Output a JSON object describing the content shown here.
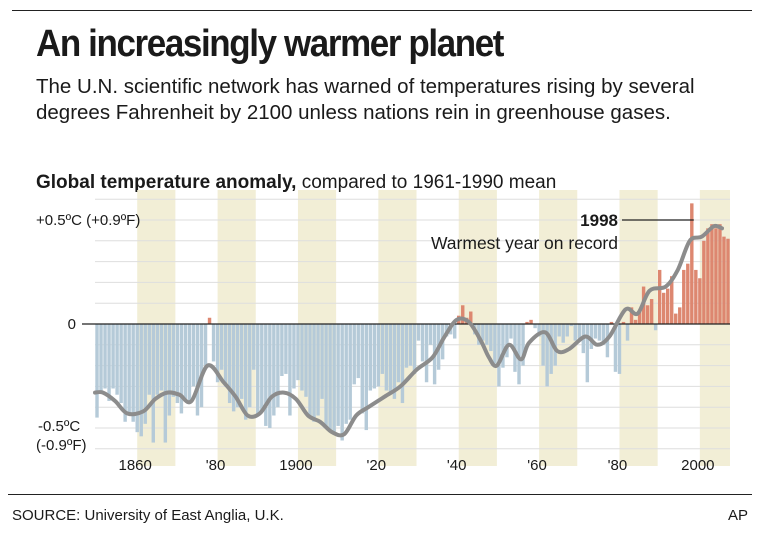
{
  "headline": "An increasingly warmer planet",
  "subtitle": "The U.N. scientific network has warned of temperatures rising by several degrees Fahrenheit by 2100 unless nations rein in greenhouse gases.",
  "chart_label_bold": "Global temperature anomaly,",
  "chart_label_rest": " compared to 1961-1990 mean",
  "source": "SOURCE: University of East Anglia, U.K.",
  "credit": "AP",
  "colors": {
    "negative": "#b5cad8",
    "positive": "#dd8770",
    "smooth_line": "#8c8c8c",
    "band": "#f2eed6",
    "gridline": "#dedede"
  },
  "chart_data": {
    "type": "bar",
    "xlim": [
      1850,
      2008
    ],
    "ylim": [
      -0.6,
      0.6
    ],
    "x_tick_labels": [
      {
        "year": 1860,
        "label": "1860"
      },
      {
        "year": 1880,
        "label": "'80"
      },
      {
        "year": 1900,
        "label": "1900"
      },
      {
        "year": 1920,
        "label": "'20"
      },
      {
        "year": 1940,
        "label": "'40"
      },
      {
        "year": 1960,
        "label": "'60"
      },
      {
        "year": 1980,
        "label": "'80"
      },
      {
        "year": 2000,
        "label": "2000"
      }
    ],
    "y_tick_labels": [
      {
        "value": 0.5,
        "label": "+0.5ºC (+0.9ºF)"
      },
      {
        "value": 0,
        "label": "0"
      },
      {
        "value": -0.5,
        "label": "-0.5ºC"
      }
    ],
    "y_tick_sublabels": [
      {
        "value": -0.5,
        "label": "(-0.9ºF)"
      }
    ],
    "years_start": 1850,
    "values": [
      -0.45,
      -0.33,
      -0.31,
      -0.37,
      -0.31,
      -0.34,
      -0.38,
      -0.47,
      -0.43,
      -0.47,
      -0.52,
      -0.54,
      -0.48,
      -0.34,
      -0.57,
      -0.34,
      -0.32,
      -0.57,
      -0.44,
      -0.35,
      -0.38,
      -0.43,
      -0.36,
      -0.37,
      -0.3,
      -0.44,
      -0.4,
      -0.2,
      0.03,
      -0.18,
      -0.28,
      -0.22,
      -0.3,
      -0.38,
      -0.42,
      -0.4,
      -0.36,
      -0.46,
      -0.4,
      -0.22,
      -0.44,
      -0.42,
      -0.49,
      -0.5,
      -0.44,
      -0.4,
      -0.25,
      -0.24,
      -0.44,
      -0.31,
      -0.27,
      -0.32,
      -0.35,
      -0.45,
      -0.47,
      -0.44,
      -0.36,
      -0.5,
      -0.52,
      -0.52,
      -0.49,
      -0.56,
      -0.48,
      -0.46,
      -0.29,
      -0.26,
      -0.43,
      -0.51,
      -0.32,
      -0.31,
      -0.3,
      -0.24,
      -0.32,
      -0.33,
      -0.36,
      -0.28,
      -0.38,
      -0.21,
      -0.2,
      -0.24,
      -0.08,
      -0.18,
      -0.28,
      -0.1,
      -0.29,
      -0.22,
      -0.17,
      -0.06,
      -0.05,
      -0.07,
      0.04,
      0.09,
      0.03,
      0.06,
      -0.05,
      -0.1,
      -0.08,
      -0.1,
      -0.13,
      -0.19,
      -0.3,
      -0.21,
      -0.16,
      -0.07,
      -0.23,
      -0.29,
      -0.2,
      0.01,
      0.02,
      -0.02,
      -0.06,
      -0.2,
      -0.3,
      -0.24,
      -0.2,
      -0.06,
      -0.09,
      -0.06,
      -0.01,
      -0.08,
      -0.07,
      -0.14,
      -0.28,
      -0.12,
      -0.07,
      -0.08,
      -0.1,
      -0.16,
      0.01,
      -0.23,
      -0.24,
      0.01,
      -0.08,
      0.08,
      0.02,
      0.06,
      0.18,
      0.09,
      0.12,
      -0.03,
      0.26,
      0.15,
      0.17,
      0.23,
      0.05,
      0.08,
      0.26,
      0.29,
      0.58,
      0.26,
      0.22,
      0.4,
      0.46,
      0.48,
      0.46,
      0.48,
      0.42,
      0.41
    ],
    "smoothed": [
      {
        "x": 1850,
        "y": -0.33
      },
      {
        "x": 1852,
        "y": -0.33
      },
      {
        "x": 1855,
        "y": -0.37
      },
      {
        "x": 1858,
        "y": -0.43
      },
      {
        "x": 1862,
        "y": -0.42
      },
      {
        "x": 1865,
        "y": -0.36
      },
      {
        "x": 1868,
        "y": -0.33
      },
      {
        "x": 1871,
        "y": -0.34
      },
      {
        "x": 1874,
        "y": -0.37
      },
      {
        "x": 1878,
        "y": -0.2
      },
      {
        "x": 1882,
        "y": -0.28
      },
      {
        "x": 1885,
        "y": -0.35
      },
      {
        "x": 1888,
        "y": -0.44
      },
      {
        "x": 1891,
        "y": -0.43
      },
      {
        "x": 1894,
        "y": -0.35
      },
      {
        "x": 1897,
        "y": -0.33
      },
      {
        "x": 1900,
        "y": -0.36
      },
      {
        "x": 1903,
        "y": -0.44
      },
      {
        "x": 1906,
        "y": -0.47
      },
      {
        "x": 1909,
        "y": -0.52
      },
      {
        "x": 1912,
        "y": -0.53
      },
      {
        "x": 1915,
        "y": -0.44
      },
      {
        "x": 1918,
        "y": -0.4
      },
      {
        "x": 1922,
        "y": -0.35
      },
      {
        "x": 1926,
        "y": -0.3
      },
      {
        "x": 1930,
        "y": -0.22
      },
      {
        "x": 1934,
        "y": -0.16
      },
      {
        "x": 1937,
        "y": -0.06
      },
      {
        "x": 1940,
        "y": 0.02
      },
      {
        "x": 1943,
        "y": 0.01
      },
      {
        "x": 1946,
        "y": -0.08
      },
      {
        "x": 1948,
        "y": -0.16
      },
      {
        "x": 1950,
        "y": -0.2
      },
      {
        "x": 1953,
        "y": -0.1
      },
      {
        "x": 1956,
        "y": -0.17
      },
      {
        "x": 1958,
        "y": -0.09
      },
      {
        "x": 1962,
        "y": -0.04
      },
      {
        "x": 1965,
        "y": -0.13
      },
      {
        "x": 1968,
        "y": -0.12
      },
      {
        "x": 1972,
        "y": -0.06
      },
      {
        "x": 1975,
        "y": -0.1
      },
      {
        "x": 1978,
        "y": -0.06
      },
      {
        "x": 1982,
        "y": 0.07
      },
      {
        "x": 1985,
        "y": 0.05
      },
      {
        "x": 1988,
        "y": 0.16
      },
      {
        "x": 1992,
        "y": 0.18
      },
      {
        "x": 1995,
        "y": 0.26
      },
      {
        "x": 1998,
        "y": 0.4
      },
      {
        "x": 2001,
        "y": 0.42
      },
      {
        "x": 2004,
        "y": 0.47
      },
      {
        "x": 2006,
        "y": 0.46
      }
    ],
    "shaded_decades": [
      [
        1860,
        1870
      ],
      [
        1880,
        1890
      ],
      [
        1900,
        1910
      ],
      [
        1920,
        1930
      ],
      [
        1940,
        1950
      ],
      [
        1960,
        1970
      ],
      [
        1980,
        1990
      ],
      [
        2000,
        2010
      ]
    ],
    "annotation": {
      "year": 1998,
      "label": "1998",
      "text": "Warmest year on record"
    }
  }
}
